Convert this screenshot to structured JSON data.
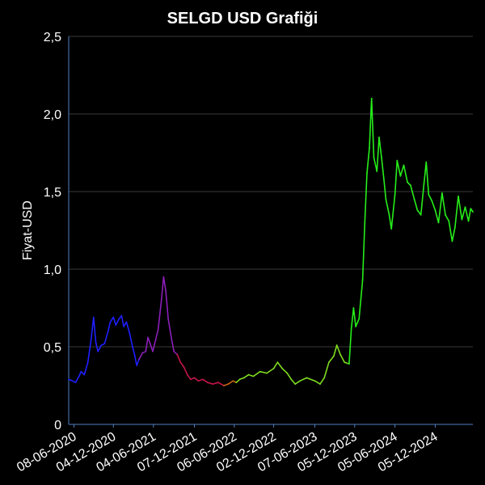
{
  "chart_data": {
    "type": "line",
    "title": "SELGD USD Grafiği",
    "xlabel": "",
    "ylabel": "Fiyat-USD",
    "ylim": [
      0,
      2.5
    ],
    "xlim": [
      "2020-05-15",
      "2025-05-25"
    ],
    "grid": "horizontal",
    "legend": "none",
    "y_ticks": [
      {
        "value": 0,
        "label": "0"
      },
      {
        "value": 0.5,
        "label": "0,5"
      },
      {
        "value": 1.0,
        "label": "1,0"
      },
      {
        "value": 1.5,
        "label": "1,5"
      },
      {
        "value": 2.0,
        "label": "2,0"
      },
      {
        "value": 2.5,
        "label": "2,5"
      }
    ],
    "x_ticks": [
      {
        "date": "2020-06-08",
        "label": "08-06-2020"
      },
      {
        "date": "2020-12-04",
        "label": "04-12-2020"
      },
      {
        "date": "2021-06-04",
        "label": "04-06-2021"
      },
      {
        "date": "2021-12-07",
        "label": "07-12-2021"
      },
      {
        "date": "2022-06-06",
        "label": "06-06-2022"
      },
      {
        "date": "2022-12-02",
        "label": "02-12-2022"
      },
      {
        "date": "2023-06-07",
        "label": "07-06-2023"
      },
      {
        "date": "2023-12-05",
        "label": "05-12-2023"
      },
      {
        "date": "2024-06-05",
        "label": "05-06-2024"
      },
      {
        "date": "2024-12-05",
        "label": "05-12-2024"
      }
    ],
    "series": [
      {
        "color": "#1f1fff",
        "points": [
          [
            "2020-05-15",
            0.29
          ],
          [
            "2020-06-01",
            0.28
          ],
          [
            "2020-06-15",
            0.27
          ],
          [
            "2020-07-01",
            0.31
          ],
          [
            "2020-07-10",
            0.34
          ],
          [
            "2020-07-25",
            0.32
          ],
          [
            "2020-08-10",
            0.4
          ],
          [
            "2020-08-25",
            0.55
          ],
          [
            "2020-09-05",
            0.69
          ],
          [
            "2020-09-15",
            0.53
          ],
          [
            "2020-09-25",
            0.47
          ],
          [
            "2020-10-10",
            0.51
          ],
          [
            "2020-10-25",
            0.52
          ],
          [
            "2020-11-10",
            0.6
          ],
          [
            "2020-11-20",
            0.66
          ],
          [
            "2020-12-04",
            0.69
          ],
          [
            "2020-12-15",
            0.64
          ],
          [
            "2020-12-30",
            0.68
          ],
          [
            "2021-01-10",
            0.7
          ],
          [
            "2021-01-20",
            0.63
          ],
          [
            "2021-02-01",
            0.66
          ],
          [
            "2021-02-15",
            0.59
          ],
          [
            "2021-03-01",
            0.5
          ],
          [
            "2021-03-10",
            0.45
          ],
          [
            "2021-03-20",
            0.38
          ],
          [
            "2021-03-31",
            0.42
          ]
        ]
      },
      {
        "color": "#8b1fb8",
        "points": [
          [
            "2021-03-31",
            0.42
          ],
          [
            "2021-04-15",
            0.46
          ],
          [
            "2021-04-30",
            0.47
          ],
          [
            "2021-05-10",
            0.56
          ],
          [
            "2021-05-20",
            0.52
          ],
          [
            "2021-06-01",
            0.47
          ],
          [
            "2021-06-15",
            0.55
          ],
          [
            "2021-06-25",
            0.61
          ],
          [
            "2021-07-10",
            0.8
          ],
          [
            "2021-07-20",
            0.95
          ],
          [
            "2021-07-30",
            0.86
          ],
          [
            "2021-08-10",
            0.68
          ],
          [
            "2021-08-25",
            0.55
          ],
          [
            "2021-09-05",
            0.47
          ],
          [
            "2021-09-20",
            0.45
          ]
        ]
      },
      {
        "color": "#c4154a",
        "points": [
          [
            "2021-09-20",
            0.45
          ],
          [
            "2021-10-05",
            0.4
          ],
          [
            "2021-10-20",
            0.37
          ],
          [
            "2021-11-05",
            0.32
          ],
          [
            "2021-11-20",
            0.29
          ],
          [
            "2021-12-07",
            0.3
          ],
          [
            "2021-12-25",
            0.28
          ],
          [
            "2022-01-15",
            0.29
          ],
          [
            "2022-02-05",
            0.27
          ],
          [
            "2022-03-01",
            0.26
          ],
          [
            "2022-03-25",
            0.27
          ],
          [
            "2022-04-20",
            0.25
          ]
        ]
      },
      {
        "color": "#c46414",
        "points": [
          [
            "2022-04-20",
            0.25
          ],
          [
            "2022-05-10",
            0.26
          ],
          [
            "2022-06-01",
            0.28
          ],
          [
            "2022-06-15",
            0.27
          ]
        ]
      },
      {
        "color": "#7fdc1f",
        "points": [
          [
            "2022-06-15",
            0.27
          ],
          [
            "2022-07-01",
            0.29
          ],
          [
            "2022-07-20",
            0.3
          ],
          [
            "2022-08-10",
            0.32
          ],
          [
            "2022-09-01",
            0.31
          ],
          [
            "2022-10-01",
            0.34
          ],
          [
            "2022-11-01",
            0.33
          ],
          [
            "2022-12-02",
            0.36
          ],
          [
            "2022-12-20",
            0.4
          ],
          [
            "2023-01-10",
            0.36
          ],
          [
            "2023-02-01",
            0.33
          ],
          [
            "2023-02-20",
            0.29
          ],
          [
            "2023-03-10",
            0.26
          ],
          [
            "2023-04-01",
            0.28
          ],
          [
            "2023-05-01",
            0.3
          ],
          [
            "2023-06-07",
            0.28
          ],
          [
            "2023-07-01",
            0.26
          ],
          [
            "2023-07-20",
            0.3
          ],
          [
            "2023-08-10",
            0.4
          ],
          [
            "2023-09-01",
            0.44
          ],
          [
            "2023-09-15",
            0.51
          ],
          [
            "2023-10-01",
            0.45
          ],
          [
            "2023-10-20",
            0.4
          ],
          [
            "2023-11-10",
            0.39
          ]
        ]
      },
      {
        "color": "#26ee1a",
        "points": [
          [
            "2023-11-10",
            0.39
          ],
          [
            "2023-11-20",
            0.62
          ],
          [
            "2023-11-30",
            0.75
          ],
          [
            "2023-12-10",
            0.63
          ],
          [
            "2023-12-25",
            0.68
          ],
          [
            "2024-01-10",
            0.93
          ],
          [
            "2024-01-20",
            1.3
          ],
          [
            "2024-01-30",
            1.62
          ],
          [
            "2024-02-10",
            1.78
          ],
          [
            "2024-02-20",
            2.1
          ],
          [
            "2024-03-01",
            1.72
          ],
          [
            "2024-03-15",
            1.63
          ],
          [
            "2024-03-25",
            1.85
          ],
          [
            "2024-04-05",
            1.72
          ],
          [
            "2024-04-15",
            1.59
          ],
          [
            "2024-04-25",
            1.45
          ],
          [
            "2024-05-10",
            1.35
          ],
          [
            "2024-05-20",
            1.26
          ],
          [
            "2024-06-05",
            1.48
          ],
          [
            "2024-06-15",
            1.7
          ],
          [
            "2024-06-30",
            1.6
          ],
          [
            "2024-07-15",
            1.67
          ],
          [
            "2024-08-01",
            1.56
          ],
          [
            "2024-08-15",
            1.54
          ],
          [
            "2024-09-01",
            1.45
          ],
          [
            "2024-09-15",
            1.38
          ],
          [
            "2024-10-01",
            1.35
          ],
          [
            "2024-10-15",
            1.55
          ],
          [
            "2024-10-25",
            1.69
          ],
          [
            "2024-11-05",
            1.48
          ],
          [
            "2024-11-20",
            1.44
          ],
          [
            "2024-12-05",
            1.38
          ],
          [
            "2024-12-20",
            1.3
          ],
          [
            "2025-01-05",
            1.49
          ],
          [
            "2025-01-20",
            1.35
          ],
          [
            "2025-02-05",
            1.31
          ],
          [
            "2025-02-20",
            1.18
          ],
          [
            "2025-03-05",
            1.27
          ],
          [
            "2025-03-20",
            1.47
          ],
          [
            "2025-04-05",
            1.32
          ],
          [
            "2025-04-20",
            1.4
          ],
          [
            "2025-05-05",
            1.31
          ],
          [
            "2025-05-15",
            1.39
          ],
          [
            "2025-05-25",
            1.37
          ]
        ]
      }
    ]
  }
}
